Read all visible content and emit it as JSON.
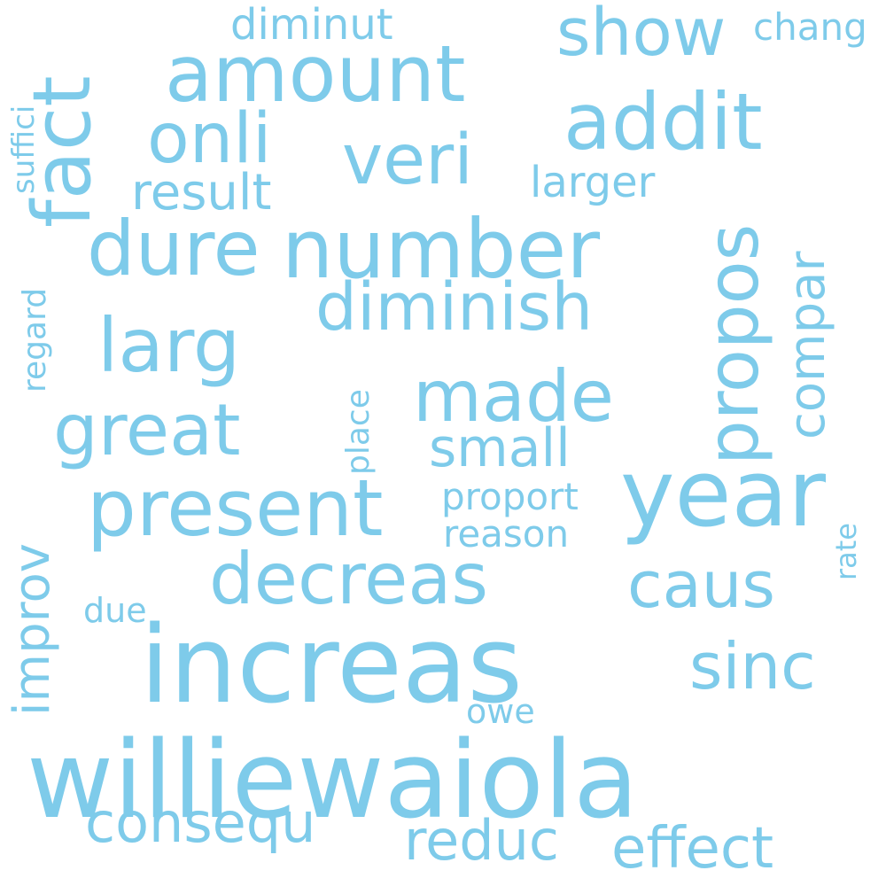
{
  "word_cloud": {
    "color": "#7ecbea",
    "background": "#ffffff",
    "words": {
      "williewaiola": "williewaiola",
      "increas": "increas",
      "number": "number",
      "year": "year",
      "addit": "addit",
      "amount": "amount",
      "present": "present",
      "diminish": "diminish",
      "decreas": "decreas",
      "larg": "larg",
      "great": "great",
      "made": "made",
      "fact": "fact",
      "propos": "propos",
      "onli": "onli",
      "veri": "veri",
      "show": "show",
      "dure": "dure",
      "caus": "caus",
      "sinc": "sinc",
      "effect": "effect",
      "consequ": "consequ",
      "reduc": "reduc",
      "compar": "compar",
      "improv": "improv",
      "result": "result",
      "small": "small",
      "larger": "larger",
      "proport": "proport",
      "reason": "reason",
      "diminut": "diminut",
      "chang": "chang",
      "suffici": "suffici",
      "regard": "regard",
      "place": "place",
      "rate": "rate",
      "due": "due",
      "owe": "owe"
    }
  }
}
